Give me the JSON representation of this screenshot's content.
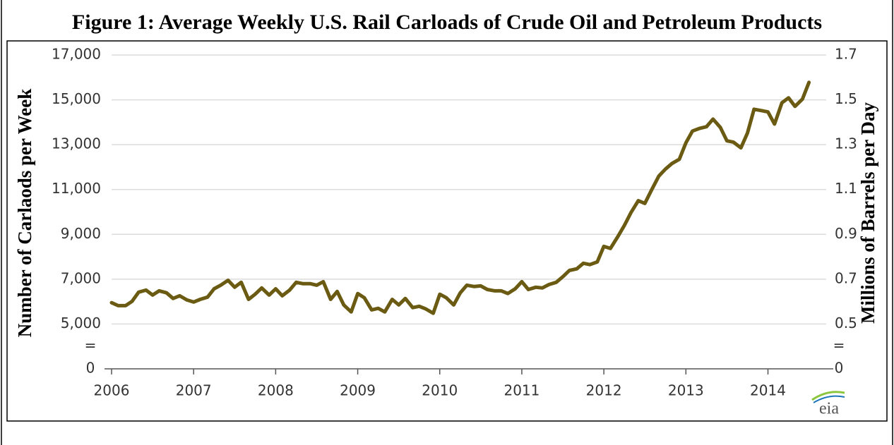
{
  "chart_data": {
    "type": "line",
    "title": "Figure 1: Average Weekly U.S. Rail Carloads of Crude Oil and Petroleum Products",
    "ylabel": "Number of Carlaods per Week",
    "y2label": "Millions of Barrels per Day",
    "logo": "eia",
    "color": "#6b5a12",
    "xlim": [
      2006,
      2014.71
    ],
    "xticks": [
      2006,
      2007,
      2008,
      2009,
      2010,
      2011,
      2012,
      2013,
      2014
    ],
    "ylim": [
      3000,
      17000
    ],
    "yticks": [
      {
        "value": 17000,
        "label": "17,000"
      },
      {
        "value": 15000,
        "label": "15,000"
      },
      {
        "value": 13000,
        "label": "13,000"
      },
      {
        "value": 11000,
        "label": "11,000"
      },
      {
        "value": 9000,
        "label": "9,000"
      },
      {
        "value": 7000,
        "label": "7,000"
      },
      {
        "value": 5000,
        "label": "5,000"
      }
    ],
    "y2lim": [
      0.3,
      1.7
    ],
    "y2ticks": [
      1.7,
      1.5,
      1.3,
      1.1,
      0.9,
      0.7,
      0.5
    ],
    "axis_break": {
      "symbol": "=",
      "floor_label": "0"
    },
    "grid": true,
    "x": [
      2006.0,
      2006.08,
      2006.17,
      2006.25,
      2006.33,
      2006.42,
      2006.5,
      2006.58,
      2006.67,
      2006.75,
      2006.83,
      2006.92,
      2007.0,
      2007.08,
      2007.17,
      2007.25,
      2007.33,
      2007.42,
      2007.5,
      2007.58,
      2007.67,
      2007.75,
      2007.83,
      2007.92,
      2008.0,
      2008.08,
      2008.17,
      2008.25,
      2008.33,
      2008.42,
      2008.5,
      2008.58,
      2008.67,
      2008.75,
      2008.83,
      2008.92,
      2009.0,
      2009.08,
      2009.17,
      2009.25,
      2009.33,
      2009.42,
      2009.5,
      2009.58,
      2009.67,
      2009.75,
      2009.83,
      2009.92,
      2010.0,
      2010.08,
      2010.17,
      2010.25,
      2010.33,
      2010.42,
      2010.5,
      2010.58,
      2010.67,
      2010.75,
      2010.83,
      2010.92,
      2011.0,
      2011.08,
      2011.17,
      2011.25,
      2011.33,
      2011.42,
      2011.5,
      2011.58,
      2011.67,
      2011.75,
      2011.83,
      2011.92,
      2012.0,
      2012.08,
      2012.17,
      2012.25,
      2012.33,
      2012.42,
      2012.5,
      2012.58,
      2012.67,
      2012.75,
      2012.83,
      2012.92,
      2013.0,
      2013.08,
      2013.17,
      2013.25,
      2013.33,
      2013.42,
      2013.5,
      2013.58,
      2013.67,
      2013.75,
      2013.83,
      2013.92,
      2014.0,
      2014.08,
      2014.17,
      2014.25,
      2014.33,
      2014.42,
      2014.5
    ],
    "values": [
      5950,
      5820,
      5820,
      6010,
      6420,
      6510,
      6290,
      6480,
      6390,
      6140,
      6260,
      6070,
      5980,
      6100,
      6200,
      6570,
      6730,
      6950,
      6640,
      6860,
      6100,
      6330,
      6610,
      6290,
      6570,
      6260,
      6510,
      6860,
      6800,
      6800,
      6730,
      6890,
      6100,
      6450,
      5850,
      5540,
      6360,
      6170,
      5630,
      5700,
      5540,
      6100,
      5850,
      6140,
      5730,
      5790,
      5670,
      5480,
      6330,
      6170,
      5850,
      6390,
      6730,
      6670,
      6700,
      6540,
      6480,
      6480,
      6360,
      6570,
      6890,
      6540,
      6640,
      6610,
      6760,
      6860,
      7110,
      7390,
      7460,
      7710,
      7650,
      7770,
      8460,
      8370,
      8900,
      9400,
      9970,
      10500,
      10380,
      10970,
      11600,
      11910,
      12160,
      12350,
      13080,
      13610,
      13730,
      13800,
      14140,
      13770,
      13170,
      13110,
      12860,
      13520,
      14580,
      14520,
      14460,
      13920,
      14870,
      15090,
      14710,
      15030,
      15780
    ]
  }
}
